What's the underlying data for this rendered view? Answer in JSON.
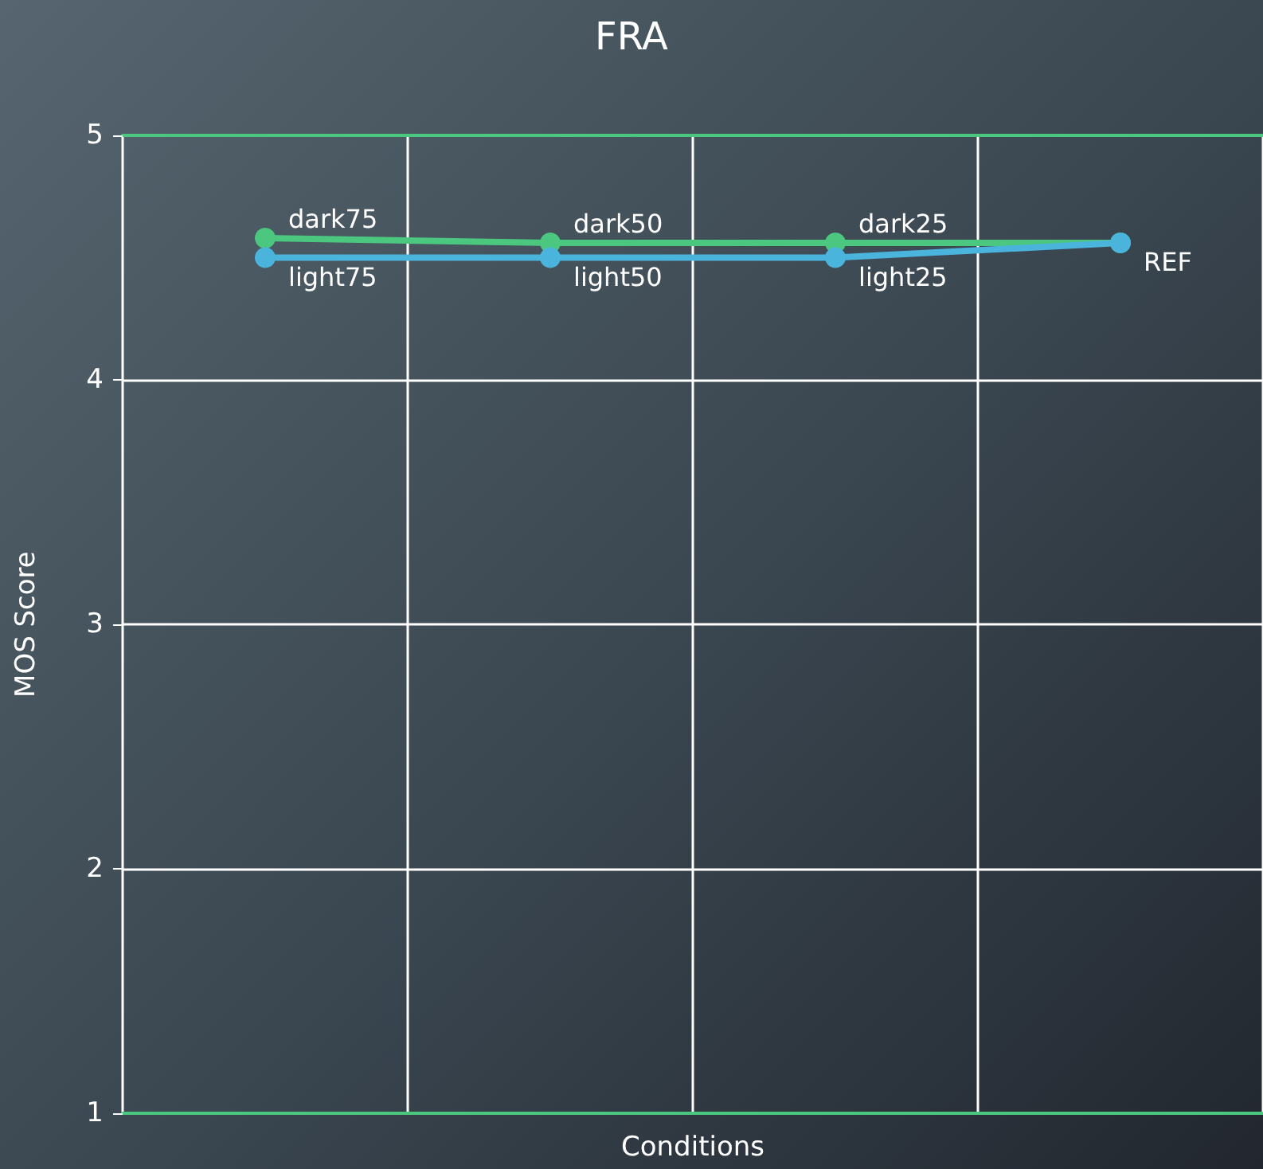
{
  "chart_data": {
    "type": "line",
    "title": "FRA",
    "xlabel": "Conditions",
    "ylabel": "MOS Score",
    "categories": [
      null,
      null,
      null,
      null
    ],
    "series": [
      {
        "color": "#4bc77f",
        "values": [
          4.58,
          4.56,
          4.56,
          4.56
        ],
        "value_labels": [
          "dark75",
          "dark50",
          "dark25",
          null
        ]
      },
      {
        "color": "#4ab4dd",
        "values": [
          4.5,
          4.5,
          4.5,
          4.56
        ],
        "value_labels": [
          "light75",
          "light50",
          "light25",
          "REF"
        ]
      }
    ],
    "ylim": [
      1,
      5
    ],
    "yticks": [
      1,
      2,
      3,
      4,
      5
    ],
    "grid": true,
    "marker": "circle",
    "line_style": "solid"
  }
}
